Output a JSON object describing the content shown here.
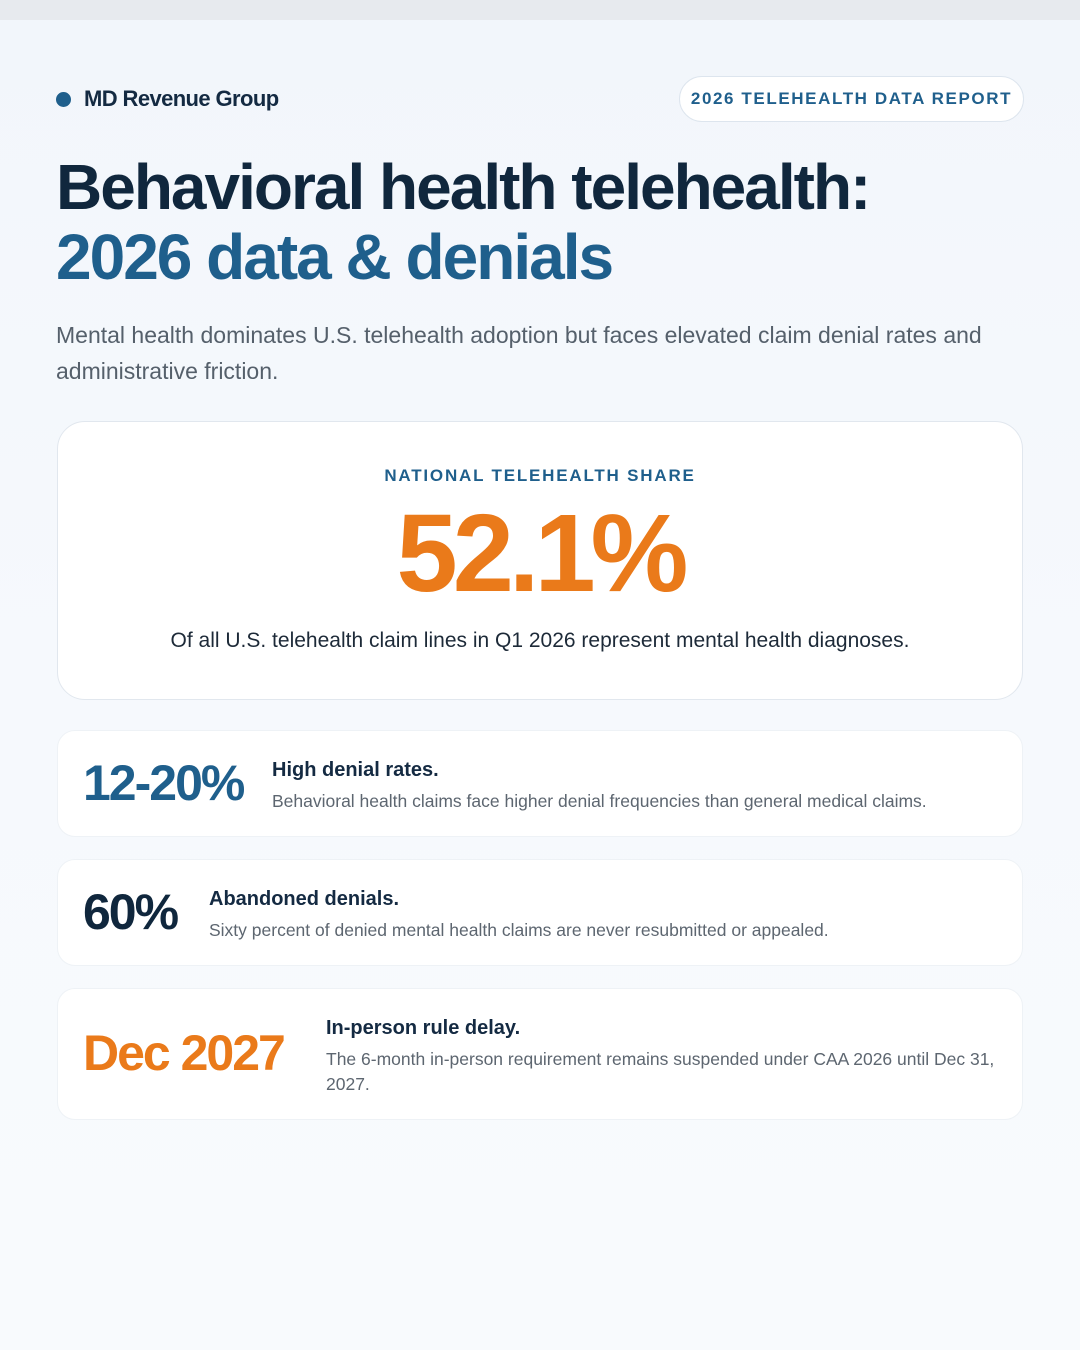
{
  "brand": {
    "name": "MD Revenue Group"
  },
  "report_label": "2026 TELEHEALTH DATA REPORT",
  "title": {
    "line1": "Behavioral health telehealth:",
    "line2": "2026 data & denials"
  },
  "subtitle": "Mental health dominates U.S. telehealth adoption but faces elevated claim denial rates and administrative friction.",
  "hero": {
    "label": "NATIONAL TELEHEALTH SHARE",
    "value": "52.1%",
    "description": "Of all U.S. telehealth claim lines in Q1 2026 represent mental health diagnoses."
  },
  "stats": [
    {
      "value": "12-20%",
      "heading": "High denial rates.",
      "description": "Behavioral health claims face higher denial frequencies than general medical claims."
    },
    {
      "value": "60%",
      "heading": "Abandoned denials.",
      "description": "Sixty percent of denied mental health claims are never resubmitted or appealed."
    },
    {
      "value": "Dec 2027",
      "heading": "In-person rule delay.",
      "description": "The 6-month in-person requirement remains suspended under CAA 2026 until Dec 31, 2027."
    }
  ],
  "colors": {
    "navy": "#10273d",
    "blue": "#1f5f8c",
    "orange": "#ea7a1a",
    "muted_text": "#55606b"
  }
}
